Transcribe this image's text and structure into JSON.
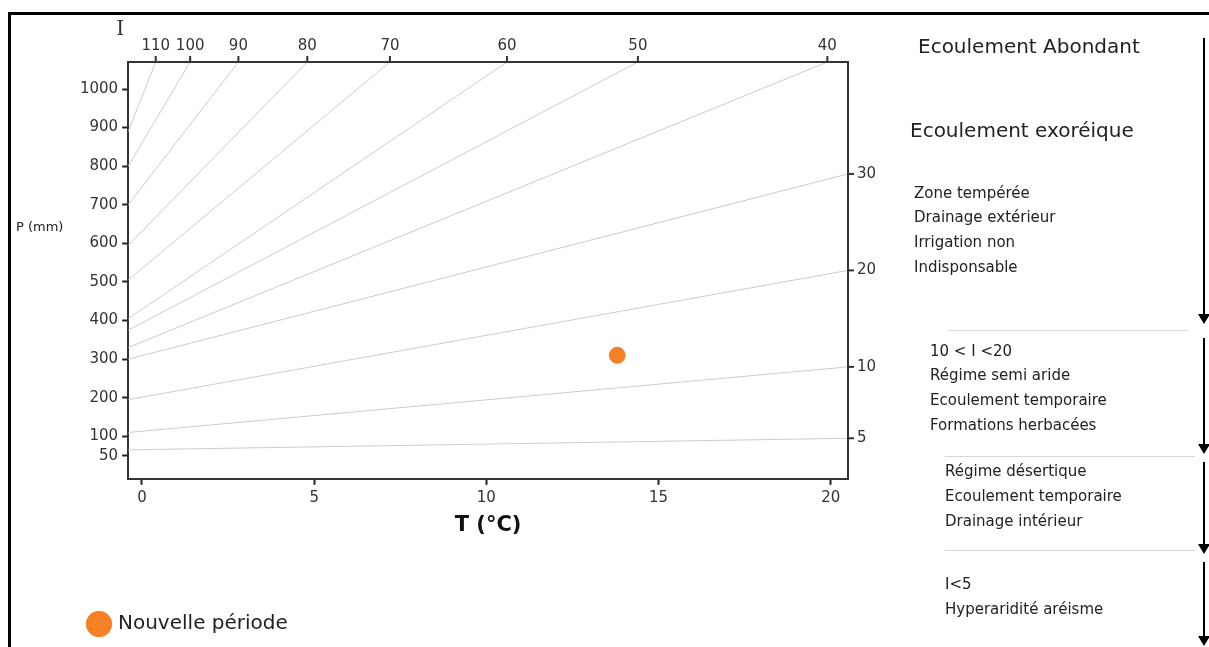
{
  "chart_data": {
    "type": "line",
    "xlabel": "T (°C)",
    "ylabel": "P (mm)",
    "x2label": "I",
    "xlim": [
      -0.4,
      20.5
    ],
    "xticks": [
      0,
      5,
      10,
      15,
      20
    ],
    "ylim": [
      -10,
      1070
    ],
    "yticks": [
      50,
      100,
      200,
      300,
      400,
      500,
      600,
      700,
      800,
      900,
      1000
    ],
    "grid": false,
    "legend": "bottom left",
    "series": [
      {
        "marker": "none",
        "color": "#cccccc",
        "x": [
          -0.4,
          0.4
        ],
        "values": [
          890,
          1070
        ]
      },
      {
        "marker": "none",
        "color": "#cccccc",
        "x": [
          -0.4,
          1.4
        ],
        "values": [
          800,
          1070
        ]
      },
      {
        "marker": "none",
        "color": "#cccccc",
        "x": [
          -0.4,
          2.8
        ],
        "values": [
          700,
          1070
        ]
      },
      {
        "marker": "none",
        "color": "#cccccc",
        "x": [
          -0.4,
          4.8
        ],
        "values": [
          595,
          1070
        ]
      },
      {
        "marker": "none",
        "color": "#cccccc",
        "x": [
          -0.4,
          7.2
        ],
        "values": [
          505,
          1070
        ]
      },
      {
        "marker": "none",
        "color": "#cccccc",
        "x": [
          -0.4,
          10.6
        ],
        "values": [
          405,
          1070
        ]
      },
      {
        "marker": "none",
        "color": "#cccccc",
        "x": [
          -0.4,
          14.4
        ],
        "values": [
          375,
          1070
        ]
      },
      {
        "marker": "none",
        "color": "#cccccc",
        "x": [
          -0.4,
          19.9
        ],
        "values": [
          330,
          1070
        ]
      },
      {
        "marker": "none",
        "color": "#cccccc",
        "x": [
          -0.4,
          20.5
        ],
        "values": [
          300,
          780
        ]
      },
      {
        "marker": "none",
        "color": "#cccccc",
        "x": [
          -0.4,
          20.5
        ],
        "values": [
          195,
          530
        ]
      },
      {
        "marker": "none",
        "color": "#cccccc",
        "x": [
          -0.4,
          20.5
        ],
        "values": [
          110,
          280
        ]
      },
      {
        "marker": "none",
        "color": "#cccccc",
        "x": [
          -0.4,
          20.5
        ],
        "values": [
          65,
          95
        ]
      },
      {
        "type": "scatter",
        "marker": "circle",
        "name": "Nouvelle période",
        "color": "#f58025",
        "x": [
          13.8
        ],
        "values": [
          310
        ]
      }
    ],
    "annotations": [
      {
        "text": "110",
        "x": 0.4,
        "y": 1070
      },
      {
        "text": "100",
        "x": 1.4,
        "y": 1070
      },
      {
        "text": "90",
        "x": 2.8,
        "y": 1070
      },
      {
        "text": "80",
        "x": 4.8,
        "y": 1070
      },
      {
        "text": "70",
        "x": 7.2,
        "y": 1070
      },
      {
        "text": "60",
        "x": 10.6,
        "y": 1070
      },
      {
        "text": "50",
        "x": 14.4,
        "y": 1070
      },
      {
        "text": "40",
        "x": 19.9,
        "y": 1070
      },
      {
        "text": "30",
        "x": 20.5,
        "y": 780
      },
      {
        "text": "20",
        "x": 20.5,
        "y": 530
      },
      {
        "text": "10",
        "x": 20.5,
        "y": 280
      },
      {
        "text": "5",
        "x": 20.5,
        "y": 95
      },
      "Ecoulement Abondant",
      "Ecoulement exoréique",
      "Zone tempérée",
      "Drainage extérieur",
      "Irrigation non",
      "Indisponsable",
      "10 < I <20",
      "Régime semi aride",
      "Ecoulement temporaire",
      "Formations herbacées",
      "Régime désertique",
      "Ecoulement temporaire",
      "Drainage intérieur",
      "I<5",
      "Hyperaridité aréisme"
    ]
  }
}
